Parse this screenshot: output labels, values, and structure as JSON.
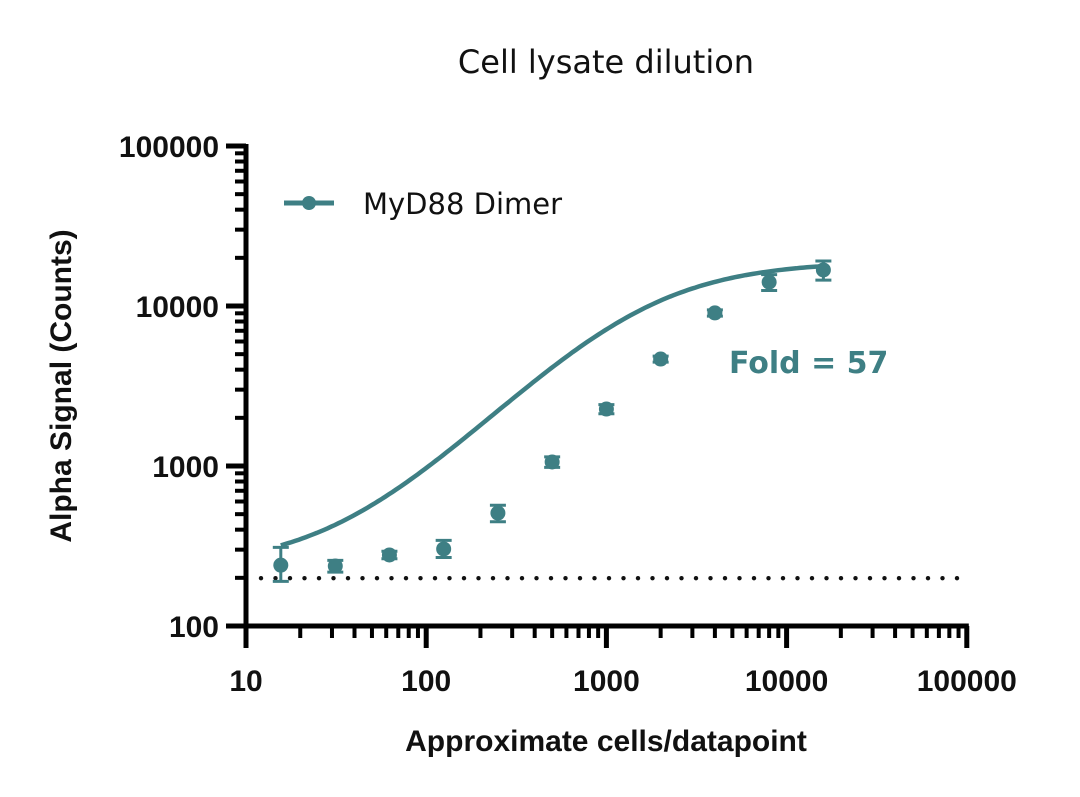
{
  "chart_data": {
    "type": "line",
    "title": "Cell lysate dilution",
    "xlabel": "Approximate cells/datapoint",
    "ylabel": "Alpha Signal (Counts)",
    "xscale": "log",
    "yscale": "log",
    "xlim": [
      10,
      100000
    ],
    "ylim": [
      100,
      100000
    ],
    "x_ticks": [
      "10",
      "100",
      "1000",
      "10000",
      "100000"
    ],
    "y_ticks": [
      "100",
      "1000",
      "10000",
      "100000"
    ],
    "grid": false,
    "legend_position": "upper left",
    "series": [
      {
        "name": "MyD88 Dimer",
        "color": "#3e7f84",
        "x": [
          15.6,
          31.3,
          62.5,
          125,
          250,
          500,
          1000,
          2000,
          4000,
          8000,
          16000
        ],
        "y": [
          240,
          237,
          278,
          303,
          508,
          1060,
          2270,
          4660,
          9050,
          14100,
          16800
        ],
        "error_plus": [
          70,
          20,
          15,
          40,
          60,
          80,
          150,
          200,
          400,
          1600,
          2300
        ],
        "error_minus": [
          50,
          20,
          15,
          35,
          60,
          80,
          150,
          200,
          400,
          1600,
          2300
        ],
        "fit": "sigmoidal curve"
      }
    ],
    "reference_line": {
      "style": "dotted",
      "y": 199,
      "color": "#111111"
    },
    "annotations": [
      {
        "text": "Fold = 57",
        "x": 4500,
        "y": 4200,
        "color": "#3e7f84"
      }
    ]
  }
}
